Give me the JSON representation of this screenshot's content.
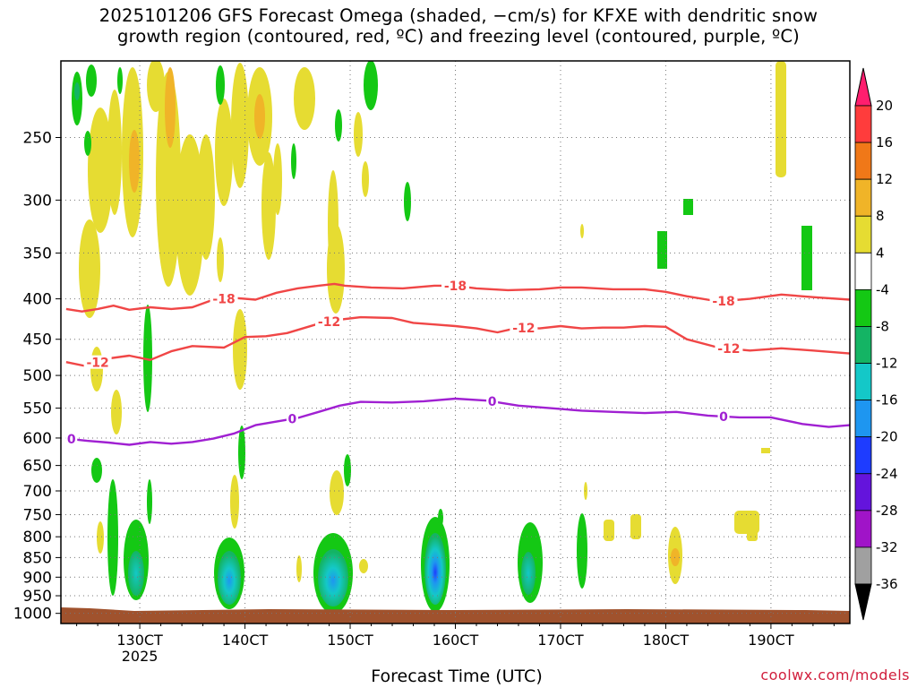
{
  "title": {
    "line1": "2025101206 GFS Forecast Omega (shaded, −cm/s) for KFXE with dendritic snow",
    "line2": "growth region (contoured, red, ºC) and freezing level (contoured, purple, ºC)"
  },
  "footer": {
    "xlabel": "Forecast Time (UTC)",
    "credit": "coolwx.com/models"
  },
  "chart_data": {
    "type": "heatmap",
    "x_unit": "forecast time (UTC day/hour tick labels)",
    "y_unit": "pressure (hPa, log-pressure scale)",
    "ylim": [
      1030,
      200
    ],
    "x_ticks": [
      "130CT",
      "140CT",
      "150CT",
      "160CT",
      "170CT",
      "180CT",
      "190CT"
    ],
    "x_tick_year": "2025",
    "y_ticks": [
      250,
      300,
      350,
      400,
      450,
      500,
      550,
      600,
      650,
      700,
      750,
      800,
      850,
      900,
      950,
      1000
    ],
    "grid": true,
    "colorbar": {
      "labels": [
        "20",
        "16",
        "12",
        "8",
        "4",
        "-4",
        "-8",
        "-12",
        "-16",
        "-20",
        "-24",
        "-28",
        "-32",
        "-36"
      ],
      "colors": [
        "#ff1e6e",
        "#ff3c3c",
        "#f07818",
        "#f0b428",
        "#e6dc32",
        "#ffffff",
        "#14c814",
        "#14b464",
        "#14c8c8",
        "#1e96f0",
        "#1e3cff",
        "#6414dc",
        "#a014c8",
        "#a0a0a0",
        "#000000"
      ]
    },
    "contours": [
      {
        "name": "-18",
        "color": "#f04646",
        "points": [
          [
            123.0,
            412
          ],
          [
            124.5,
            415
          ],
          [
            126.0,
            412
          ],
          [
            127.5,
            408
          ],
          [
            129.0,
            413
          ],
          [
            131.0,
            410
          ],
          [
            133.0,
            412
          ],
          [
            135.0,
            410
          ],
          [
            137.0,
            401
          ],
          [
            139.0,
            399
          ],
          [
            141.0,
            401
          ],
          [
            143.0,
            393
          ],
          [
            145.0,
            388
          ],
          [
            147.0,
            385
          ],
          [
            148.5,
            383
          ],
          [
            149.5,
            385
          ],
          [
            152.0,
            387
          ],
          [
            155.0,
            388
          ],
          [
            158.0,
            385
          ],
          [
            160.0,
            385
          ],
          [
            162.0,
            388
          ],
          [
            165.0,
            390
          ],
          [
            168.0,
            389
          ],
          [
            170.0,
            387
          ],
          [
            172.0,
            387
          ],
          [
            175.0,
            389
          ],
          [
            178.0,
            389
          ],
          [
            180.0,
            392
          ],
          [
            182.0,
            397
          ],
          [
            185.0,
            403
          ],
          [
            188.0,
            400
          ],
          [
            191.0,
            395
          ],
          [
            194.0,
            398
          ],
          [
            197.5,
            401
          ]
        ],
        "labels": [
          [
            138.0,
            "-18"
          ],
          [
            160.0,
            "-18"
          ],
          [
            185.5,
            "-18"
          ]
        ]
      },
      {
        "name": "-12",
        "color": "#f04646",
        "points": [
          [
            123.0,
            481
          ],
          [
            125.0,
            487
          ],
          [
            127.0,
            476
          ],
          [
            129.0,
            472
          ],
          [
            131.0,
            478
          ],
          [
            133.0,
            466
          ],
          [
            135.0,
            459
          ],
          [
            138.0,
            461
          ],
          [
            140.0,
            447
          ],
          [
            142.0,
            446
          ],
          [
            144.0,
            442
          ],
          [
            147.0,
            430
          ],
          [
            149.0,
            425
          ],
          [
            151.0,
            422
          ],
          [
            154.0,
            423
          ],
          [
            156.0,
            429
          ],
          [
            158.0,
            431
          ],
          [
            160.0,
            433
          ],
          [
            162.0,
            436
          ],
          [
            164.0,
            441
          ],
          [
            166.0,
            435
          ],
          [
            168.0,
            436
          ],
          [
            170.0,
            433
          ],
          [
            172.0,
            436
          ],
          [
            174.0,
            435
          ],
          [
            176.0,
            435
          ],
          [
            178.0,
            433
          ],
          [
            180.0,
            434
          ],
          [
            182.0,
            450
          ],
          [
            185.0,
            461
          ],
          [
            188.0,
            465
          ],
          [
            191.0,
            462
          ],
          [
            194.0,
            465
          ],
          [
            197.5,
            469
          ]
        ],
        "labels": [
          [
            126.0,
            "-12"
          ],
          [
            148.0,
            "-12"
          ],
          [
            166.5,
            "-12"
          ],
          [
            186.0,
            "-12"
          ]
        ]
      },
      {
        "name": "0",
        "color": "#a020d2",
        "points": [
          [
            123.0,
            601
          ],
          [
            125.0,
            605
          ],
          [
            127.0,
            608
          ],
          [
            129.0,
            612
          ],
          [
            131.0,
            607
          ],
          [
            133.0,
            610
          ],
          [
            135.0,
            607
          ],
          [
            137.0,
            601
          ],
          [
            139.0,
            592
          ],
          [
            141.0,
            578
          ],
          [
            143.0,
            572
          ],
          [
            145.0,
            566
          ],
          [
            147.0,
            556
          ],
          [
            149.0,
            546
          ],
          [
            151.0,
            540
          ],
          [
            154.0,
            541
          ],
          [
            157.0,
            539
          ],
          [
            160.0,
            535
          ],
          [
            163.0,
            538
          ],
          [
            166.0,
            546
          ],
          [
            169.0,
            550
          ],
          [
            172.0,
            554
          ],
          [
            175.0,
            556
          ],
          [
            178.0,
            558
          ],
          [
            181.0,
            556
          ],
          [
            184.0,
            562
          ],
          [
            187.0,
            565
          ],
          [
            190.0,
            565
          ],
          [
            193.0,
            576
          ],
          [
            195.5,
            581
          ],
          [
            197.5,
            578
          ]
        ],
        "labels": [
          [
            123.5,
            "0"
          ],
          [
            144.5,
            "0"
          ],
          [
            163.5,
            "0"
          ],
          [
            185.5,
            "0"
          ]
        ]
      }
    ]
  }
}
